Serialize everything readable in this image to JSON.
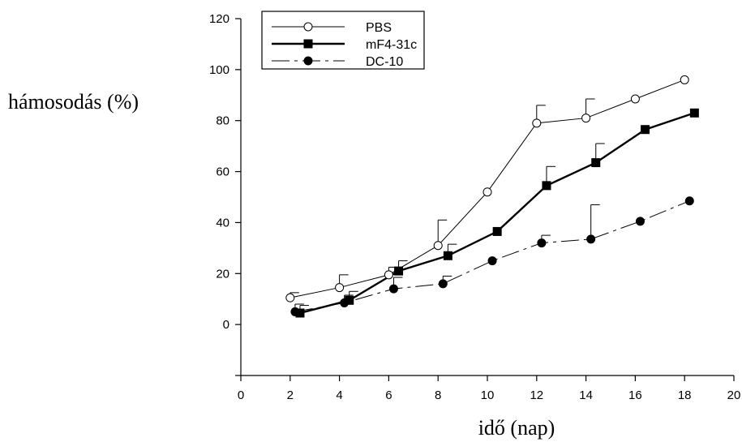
{
  "chart_data": {
    "type": "line",
    "xlabel": "idő (nap)",
    "ylabel": "hámosodás (%)",
    "xlim": [
      0,
      20
    ],
    "ylim": [
      -20,
      120
    ],
    "xticks": [
      "0",
      "2",
      "4",
      "6",
      "8",
      "10",
      "12",
      "14",
      "16",
      "18",
      "20"
    ],
    "yticks": [
      "0",
      "20",
      "40",
      "60",
      "80",
      "100",
      "120"
    ],
    "grid": false,
    "legend": "top-left",
    "series": [
      {
        "name": "PBS",
        "marker": "open-circle",
        "line": "thin-solid",
        "color": "#000000",
        "x": [
          2,
          4,
          6,
          8,
          10,
          12,
          14,
          16,
          18
        ],
        "y": [
          10.5,
          14.5,
          19.5,
          31,
          52,
          79,
          81,
          88.5,
          96
        ],
        "error": [
          2,
          5,
          3,
          10,
          null,
          7,
          7.5,
          null,
          null
        ]
      },
      {
        "name": "mF4-31c",
        "marker": "filled-square",
        "line": "thick-solid",
        "color": "#000000",
        "x": [
          2.4,
          4.4,
          6.4,
          8.4,
          10.4,
          12.4,
          14.4,
          16.4,
          18.4
        ],
        "y": [
          4.5,
          9.5,
          21,
          27,
          36.5,
          54.5,
          63.5,
          76.5,
          83
        ],
        "error": [
          3,
          3.5,
          4,
          4.5,
          null,
          7.5,
          7.5,
          null,
          null
        ]
      },
      {
        "name": "DC-10",
        "marker": "filled-circle",
        "line": "dashed",
        "color": "#000000",
        "x": [
          2.2,
          4.2,
          6.2,
          8.2,
          10.2,
          12.2,
          14.2,
          16.2,
          18.2
        ],
        "y": [
          5,
          8.5,
          14,
          16,
          25,
          32,
          33.5,
          40.5,
          48.5
        ],
        "error": [
          3,
          3,
          4.5,
          3,
          null,
          3,
          13.5,
          null,
          null
        ]
      }
    ]
  }
}
